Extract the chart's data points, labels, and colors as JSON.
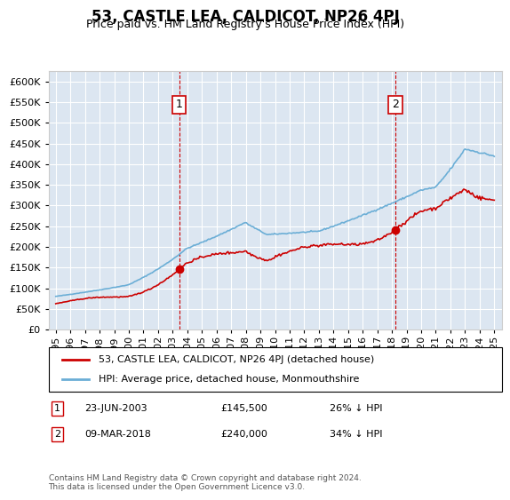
{
  "title": "53, CASTLE LEA, CALDICOT, NP26 4PJ",
  "subtitle": "Price paid vs. HM Land Registry's House Price Index (HPI)",
  "hpi_label": "HPI: Average price, detached house, Monmouthshire",
  "price_label": "53, CASTLE LEA, CALDICOT, NP26 4PJ (detached house)",
  "hpi_color": "#6baed6",
  "price_color": "#cc0000",
  "background_color": "#dce6f1",
  "annotation1": {
    "label": "1",
    "date_str": "23-JUN-2003",
    "price": 145500,
    "note": "26% ↓ HPI",
    "year": 2003.5
  },
  "annotation2": {
    "label": "2",
    "date_str": "09-MAR-2018",
    "price": 240000,
    "note": "34% ↓ HPI",
    "year": 2018.2
  },
  "ylim": [
    0,
    625000
  ],
  "xlim": [
    1994.5,
    2025.5
  ],
  "yticks": [
    0,
    50000,
    100000,
    150000,
    200000,
    250000,
    300000,
    350000,
    400000,
    450000,
    500000,
    550000,
    600000
  ],
  "footer": "Contains HM Land Registry data © Crown copyright and database right 2024.\nThis data is licensed under the Open Government Licence v3.0.",
  "legend_box_color": "#ffffff",
  "anno_box_color": "#ffffff",
  "anno_box_edge": "#cc0000"
}
